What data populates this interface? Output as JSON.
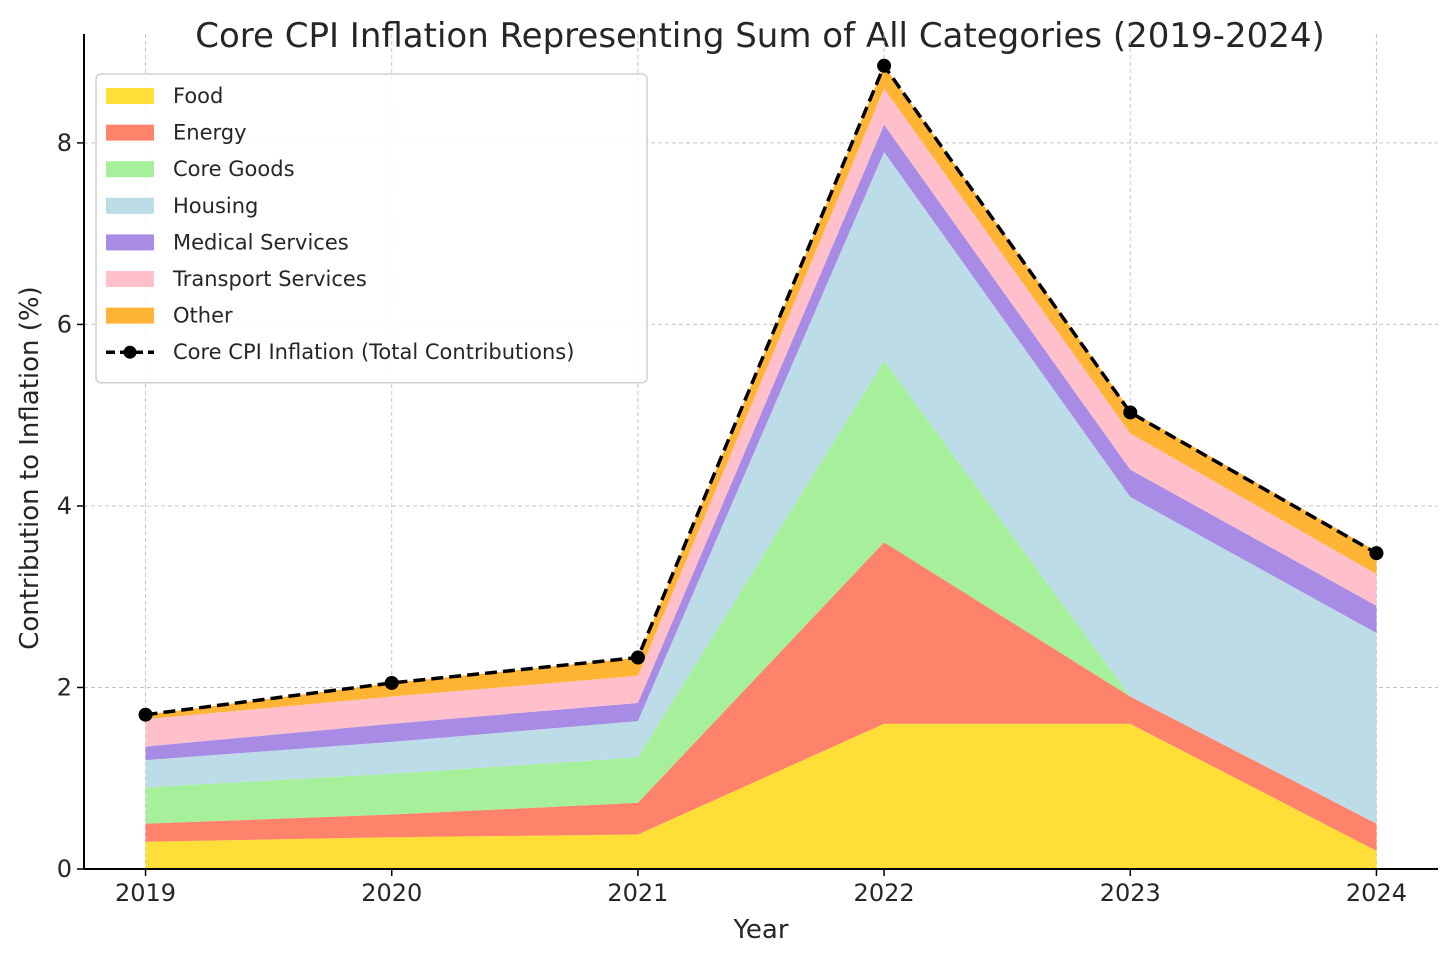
{
  "chart_data": {
    "type": "area",
    "stacked": true,
    "title": "Core CPI Inflation Representing Sum of All Categories (2019-2024)",
    "xlabel": "Year",
    "ylabel": "Contribution to Inflation (%)",
    "x": [
      "2019",
      "2020",
      "2021",
      "2022",
      "2023",
      "2024"
    ],
    "xlim": [
      2018.75,
      2024.25
    ],
    "ylim": [
      0,
      9.2
    ],
    "yticks": [
      0,
      2,
      4,
      6,
      8
    ],
    "grid": true,
    "legend_position": "top-left",
    "series": [
      {
        "name": "Food",
        "color": "#FFDF37",
        "values": [
          0.3,
          0.35,
          0.38,
          1.6,
          1.6,
          0.2
        ]
      },
      {
        "name": "Energy",
        "color": "#FF836B",
        "values": [
          0.2,
          0.25,
          0.35,
          2.0,
          0.3,
          0.3
        ]
      },
      {
        "name": "Core Goods",
        "color": "#A6F09C",
        "values": [
          0.4,
          0.45,
          0.5,
          2.0,
          0.0,
          0.0
        ]
      },
      {
        "name": "Housing",
        "color": "#BCDDE8",
        "values": [
          0.3,
          0.35,
          0.4,
          2.3,
          2.2,
          2.1
        ]
      },
      {
        "name": "Medical Services",
        "color": "#A78BE4",
        "values": [
          0.15,
          0.2,
          0.2,
          0.3,
          0.3,
          0.3
        ]
      },
      {
        "name": "Transport Services",
        "color": "#FFC0CB",
        "values": [
          0.3,
          0.3,
          0.3,
          0.4,
          0.4,
          0.35
        ]
      },
      {
        "name": "Other",
        "color": "#FFB433",
        "values": [
          0.05,
          0.15,
          0.2,
          0.25,
          0.25,
          0.25
        ]
      }
    ],
    "total_line": {
      "name": "Core CPI Inflation (Total Contributions)",
      "color": "#000000",
      "style": "dashed",
      "marker": "circle",
      "values": [
        1.7,
        2.05,
        2.33,
        8.85,
        5.03,
        3.48
      ]
    }
  }
}
